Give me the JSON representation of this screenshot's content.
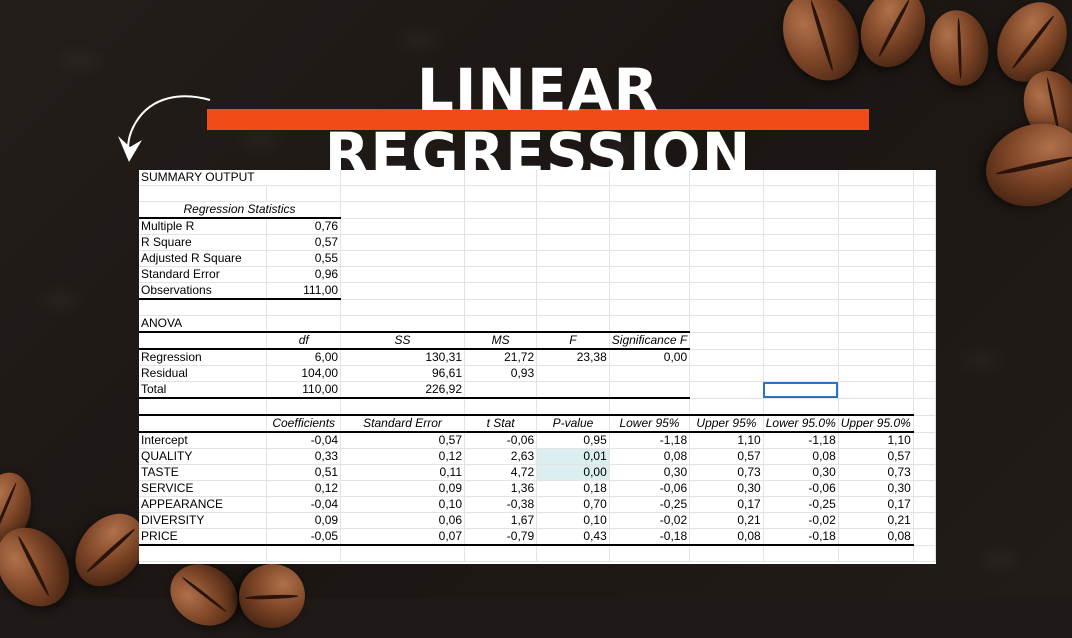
{
  "title": "LINEAR REGRESSION",
  "colors": {
    "accent": "#f04b18",
    "background": "#1f1a17",
    "highlight": "#dbeff0",
    "selection": "#2b73c9"
  },
  "summary": {
    "heading": "SUMMARY OUTPUT",
    "reg_stats_heading": "Regression Statistics",
    "reg_stats": [
      {
        "label": "Multiple R",
        "value": "0,76"
      },
      {
        "label": "R Square",
        "value": "0,57"
      },
      {
        "label": "Adjusted R Square",
        "value": "0,55"
      },
      {
        "label": "Standard Error",
        "value": "0,96"
      },
      {
        "label": "Observations",
        "value": "111,00"
      }
    ],
    "anova_heading": "ANOVA",
    "anova_headers": [
      "df",
      "SS",
      "MS",
      "F",
      "Significance F"
    ],
    "anova_rows": [
      {
        "label": "Regression",
        "cells": [
          "6,00",
          "130,31",
          "21,72",
          "23,38",
          "0,00"
        ]
      },
      {
        "label": "Residual",
        "cells": [
          "104,00",
          "96,61",
          "0,93",
          "",
          ""
        ]
      },
      {
        "label": "Total",
        "cells": [
          "110,00",
          "226,92",
          "",
          "",
          ""
        ]
      }
    ],
    "coef_headers": [
      "Coefficients",
      "Standard Error",
      "t Stat",
      "P-value",
      "Lower 95%",
      "Upper 95%",
      "Lower 95.0%",
      "Upper 95.0%"
    ],
    "coef_rows": [
      {
        "label": "Intercept",
        "cells": [
          "-0,04",
          "0,57",
          "-0,06",
          "0,95",
          "-1,18",
          "1,10",
          "-1,18",
          "1,10"
        ]
      },
      {
        "label": "QUALITY",
        "cells": [
          "0,33",
          "0,12",
          "2,63",
          "0,01",
          "0,08",
          "0,57",
          "0,08",
          "0,57"
        ]
      },
      {
        "label": "TASTE",
        "cells": [
          "0,51",
          "0,11",
          "4,72",
          "0,00",
          "0,30",
          "0,73",
          "0,30",
          "0,73"
        ]
      },
      {
        "label": "SERVICE",
        "cells": [
          "0,12",
          "0,09",
          "1,36",
          "0,18",
          "-0,06",
          "0,30",
          "-0,06",
          "0,30"
        ]
      },
      {
        "label": "APPEARANCE",
        "cells": [
          "-0,04",
          "0,10",
          "-0,38",
          "0,70",
          "-0,25",
          "0,17",
          "-0,25",
          "0,17"
        ]
      },
      {
        "label": "DIVERSITY",
        "cells": [
          "0,09",
          "0,06",
          "1,67",
          "0,10",
          "-0,02",
          "0,21",
          "-0,02",
          "0,21"
        ]
      },
      {
        "label": "PRICE",
        "cells": [
          "-0,05",
          "0,07",
          "-0,79",
          "0,43",
          "-0,18",
          "0,08",
          "-0,18",
          "0,08"
        ]
      }
    ]
  }
}
